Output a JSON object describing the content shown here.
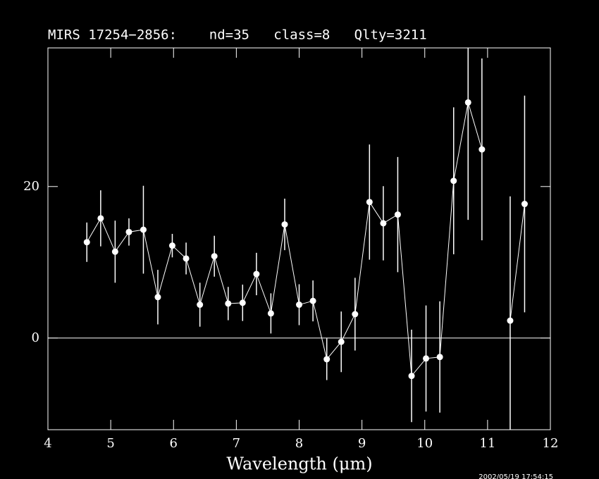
{
  "chart_data": {
    "type": "errorbar-line",
    "title": "MIRS 17254−2856:    nd=35   class=8   Qlty=3211",
    "x_label": "Wavelength (μm)",
    "annotation": "2002/05/19 17:54:15",
    "xlim": [
      4,
      12
    ],
    "xticks": [
      4,
      5,
      6,
      7,
      8,
      9,
      10,
      11,
      12
    ],
    "ylim": [
      -12.1,
      38.3
    ],
    "yticks": [
      0,
      20
    ],
    "zero_line": true,
    "grid": false,
    "series": [
      {
        "color": "#ffffff",
        "x": [
          4.62,
          4.84,
          5.07,
          5.29,
          5.52,
          5.75,
          5.98,
          6.2,
          6.42,
          6.65,
          6.87,
          7.1,
          7.32,
          7.55,
          7.77,
          8.0,
          8.22,
          8.44,
          8.67,
          8.89,
          9.12,
          9.34,
          9.57,
          9.79,
          10.02,
          10.24,
          10.46,
          10.69,
          10.91,
          11.13,
          11.36,
          11.59
        ],
        "values": [
          12.65,
          15.8,
          11.4,
          14.0,
          14.3,
          5.4,
          12.2,
          10.5,
          4.4,
          10.8,
          4.55,
          4.65,
          8.45,
          3.25,
          15.0,
          4.4,
          4.9,
          -2.8,
          -0.5,
          3.15,
          17.95,
          15.15,
          16.3,
          -5.0,
          -2.7,
          -2.5,
          20.75,
          31.1,
          24.9,
          null,
          2.3,
          17.7
        ],
        "errors": [
          2.6,
          3.7,
          4.1,
          1.8,
          5.8,
          3.6,
          1.55,
          2.1,
          2.9,
          2.7,
          2.2,
          2.4,
          2.8,
          2.65,
          3.4,
          2.7,
          2.7,
          2.75,
          4.0,
          4.8,
          7.6,
          4.9,
          7.6,
          6.1,
          7.0,
          7.35,
          9.7,
          15.5,
          12.0,
          null,
          16.4,
          14.3
        ]
      }
    ]
  }
}
